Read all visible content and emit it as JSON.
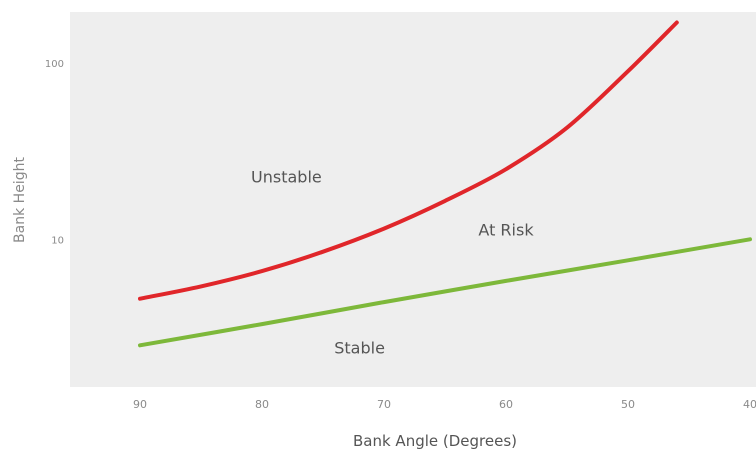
{
  "chart_data": {
    "type": "line",
    "title": "",
    "xlabel": "Bank Angle (Degrees)",
    "ylabel": "Bank Height",
    "x_ticks": [
      90,
      80,
      70,
      60,
      50,
      40
    ],
    "y_ticks": [
      {
        "value": 10,
        "label": "10"
      },
      {
        "value": 100,
        "label": "100"
      }
    ],
    "xlim": [
      95,
      40
    ],
    "ylim": [
      1.45,
      195
    ],
    "y_scale": "log",
    "x_reversed": true,
    "grid": false,
    "series": [
      {
        "color": "#e0262a",
        "x": [
          90,
          85,
          80,
          75,
          70,
          65,
          60,
          55,
          50,
          46
        ],
        "y": [
          4.6,
          5.4,
          6.6,
          8.5,
          11.5,
          16.5,
          25,
          43,
          90,
          170
        ]
      },
      {
        "color": "#7db83a",
        "x": [
          90,
          80,
          70,
          60,
          50,
          40
        ],
        "y": [
          2.5,
          3.3,
          4.4,
          5.8,
          7.6,
          10
        ]
      }
    ],
    "annotations": [
      {
        "text": "Unstable",
        "x": 78,
        "y": 21
      },
      {
        "text": "At Risk",
        "x": 60,
        "y": 10.5
      },
      {
        "text": "Stable",
        "x": 72,
        "y": 2.25
      }
    ],
    "colors": {
      "plot_background": "#eeeeee",
      "axis_text": "#8a8a8a",
      "label_text": "#555555"
    }
  }
}
